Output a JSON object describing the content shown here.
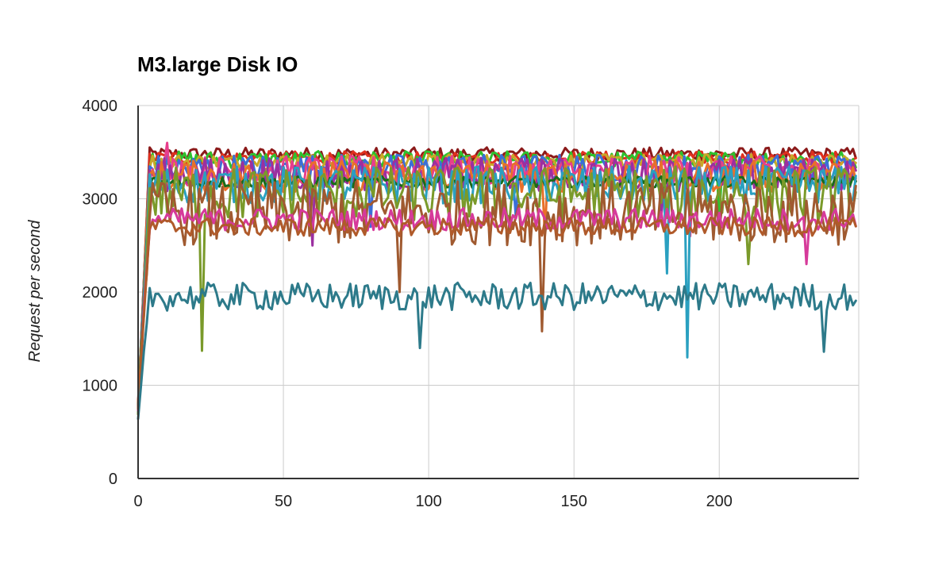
{
  "chart_data": {
    "type": "line",
    "title": "M3.large Disk IO",
    "xlabel": "",
    "ylabel": "Request per second",
    "xlim": [
      0,
      248
    ],
    "ylim": [
      0,
      4000
    ],
    "x_ticks": [
      0,
      50,
      100,
      150,
      200
    ],
    "y_ticks": [
      0,
      1000,
      2000,
      3000,
      4000
    ],
    "grid": true,
    "legend": "none",
    "x_points": 248,
    "series": [
      {
        "color": "#8b1a1a",
        "start": 780,
        "level": 3480,
        "noise": 70,
        "dips": []
      },
      {
        "color": "#e0301e",
        "start": 820,
        "level": 3440,
        "noise": 70,
        "dips": []
      },
      {
        "color": "#2ec12e",
        "start": 700,
        "level": 3420,
        "noise": 90,
        "dips": [
          [
            200,
            2700
          ]
        ]
      },
      {
        "color": "#c8a828",
        "start": 750,
        "level": 3400,
        "noise": 80,
        "dips": []
      },
      {
        "color": "#3a6fd8",
        "start": 760,
        "level": 3330,
        "noise": 150,
        "dips": [
          [
            80,
            2700
          ],
          [
            130,
            2800
          ]
        ]
      },
      {
        "color": "#e83e8c",
        "start": 790,
        "level": 3300,
        "noise": 160,
        "dips": [
          [
            10,
            3600
          ],
          [
            190,
            2600
          ]
        ]
      },
      {
        "color": "#9b2fa0",
        "start": 720,
        "level": 3260,
        "noise": 180,
        "dips": [
          [
            60,
            2500
          ],
          [
            180,
            2800
          ]
        ]
      },
      {
        "color": "#e8702a",
        "start": 810,
        "level": 3240,
        "noise": 170,
        "dips": [
          [
            140,
            2600
          ]
        ]
      },
      {
        "color": "#1a6b1a",
        "start": 760,
        "level": 3180,
        "noise": 60,
        "dips": []
      },
      {
        "color": "#2aa0c0",
        "start": 700,
        "level": 3150,
        "noise": 200,
        "dips": [
          [
            182,
            2200
          ],
          [
            189,
            1300
          ]
        ]
      },
      {
        "color": "#7a9a2a",
        "start": 690,
        "level": 3050,
        "noise": 300,
        "dips": [
          [
            22,
            1370
          ],
          [
            210,
            2300
          ]
        ]
      },
      {
        "color": "#a05a30",
        "start": 760,
        "level": 2850,
        "noise": 350,
        "dips": [
          [
            90,
            2000
          ],
          [
            139,
            1580
          ]
        ]
      },
      {
        "color": "#d63a9a",
        "start": 730,
        "level": 2780,
        "noise": 120,
        "dips": [
          [
            230,
            2300
          ]
        ]
      },
      {
        "color": "#b05a2a",
        "start": 750,
        "level": 2700,
        "noise": 100,
        "dips": []
      },
      {
        "color": "#2d7a8a",
        "start": 640,
        "level": 1950,
        "noise": 150,
        "dips": [
          [
            97,
            1400
          ],
          [
            120,
            1900
          ],
          [
            236,
            1360
          ]
        ]
      }
    ]
  }
}
